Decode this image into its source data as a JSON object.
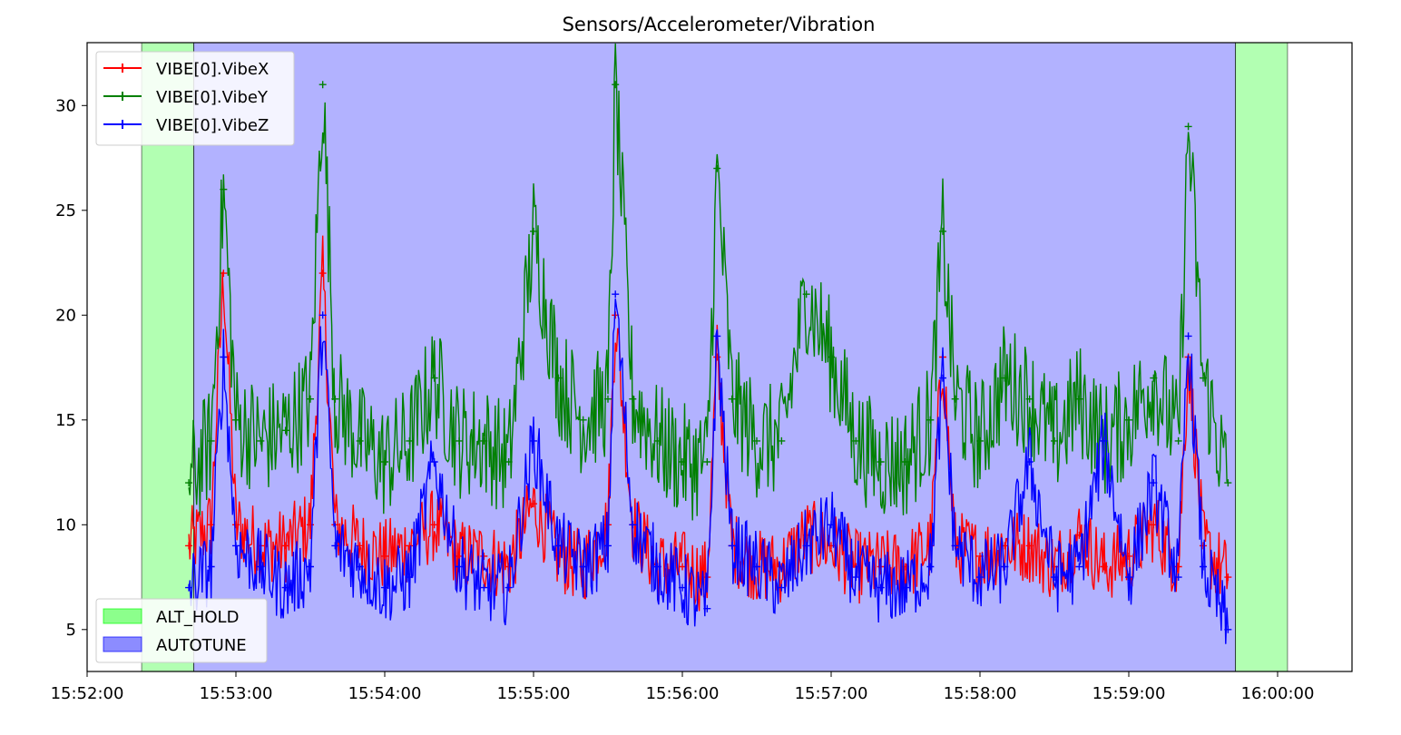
{
  "chart_data": {
    "type": "line",
    "title": "Sensors/Accelerometer/Vibration",
    "xlabel": "",
    "ylabel": "",
    "x_axis": {
      "range": [
        "15:52:00",
        "16:00:30"
      ],
      "ticks": [
        "15:52:00",
        "15:53:00",
        "15:54:00",
        "15:55:00",
        "15:56:00",
        "15:57:00",
        "15:58:00",
        "15:59:00",
        "16:00:00"
      ]
    },
    "y_axis": {
      "range": [
        3,
        33
      ],
      "ticks": [
        5,
        10,
        15,
        20,
        25,
        30
      ]
    },
    "grid": false,
    "marker": "+",
    "series": [
      {
        "name": "VIBE[0].VibeX",
        "color": "#ff0000",
        "x": [
          "15:52:41",
          "15:52:50",
          "15:52:55",
          "15:53:00",
          "15:53:10",
          "15:53:20",
          "15:53:30",
          "15:53:35",
          "15:53:40",
          "15:53:50",
          "15:54:00",
          "15:54:10",
          "15:54:20",
          "15:54:30",
          "15:54:40",
          "15:54:50",
          "15:55:00",
          "15:55:10",
          "15:55:20",
          "15:55:30",
          "15:55:33",
          "15:55:40",
          "15:55:50",
          "15:56:00",
          "15:56:10",
          "15:56:14",
          "15:56:20",
          "15:56:30",
          "15:56:40",
          "15:56:50",
          "15:57:00",
          "15:57:10",
          "15:57:20",
          "15:57:30",
          "15:57:40",
          "15:57:45",
          "15:57:50",
          "15:58:00",
          "15:58:10",
          "15:58:20",
          "15:58:30",
          "15:58:40",
          "15:58:50",
          "15:59:00",
          "15:59:10",
          "15:59:20",
          "15:59:24",
          "15:59:30",
          "15:59:40"
        ],
        "values": [
          9,
          10,
          22,
          10,
          9,
          9,
          10,
          22,
          10,
          9,
          8.5,
          9,
          10,
          8.5,
          8.5,
          8,
          11,
          8.5,
          8,
          10,
          20,
          10,
          8,
          8,
          7.5,
          18,
          9,
          8,
          8,
          9.5,
          9,
          8,
          8,
          8,
          9,
          18,
          9,
          8.5,
          9,
          9,
          8,
          9.5,
          8,
          8.5,
          10,
          8,
          18,
          9,
          7.5
        ]
      },
      {
        "name": "VIBE[0].VibeY",
        "color": "#008000",
        "x": [
          "15:52:41",
          "15:52:50",
          "15:52:55",
          "15:53:00",
          "15:53:10",
          "15:53:20",
          "15:53:30",
          "15:53:35",
          "15:53:40",
          "15:53:50",
          "15:54:00",
          "15:54:10",
          "15:54:20",
          "15:54:30",
          "15:54:40",
          "15:54:50",
          "15:55:00",
          "15:55:10",
          "15:55:20",
          "15:55:30",
          "15:55:33",
          "15:55:40",
          "15:55:50",
          "15:56:00",
          "15:56:10",
          "15:56:14",
          "15:56:20",
          "15:56:30",
          "15:56:40",
          "15:56:50",
          "15:57:00",
          "15:57:10",
          "15:57:20",
          "15:57:30",
          "15:57:40",
          "15:57:45",
          "15:57:50",
          "15:58:00",
          "15:58:10",
          "15:58:20",
          "15:58:30",
          "15:58:40",
          "15:58:50",
          "15:59:00",
          "15:59:10",
          "15:59:20",
          "15:59:24",
          "15:59:30",
          "15:59:40"
        ],
        "values": [
          12,
          14,
          26,
          15,
          14,
          14.5,
          16,
          31,
          16,
          14,
          13,
          14,
          17,
          14,
          14,
          13,
          24,
          17,
          15,
          16,
          31,
          16,
          14,
          13,
          13,
          27,
          16,
          14,
          14,
          21,
          18,
          14,
          13,
          13,
          15,
          24,
          16,
          14,
          17,
          16,
          14,
          16,
          14,
          15,
          17,
          14,
          29,
          17,
          12
        ]
      },
      {
        "name": "VIBE[0].VibeZ",
        "color": "#0000ff",
        "x": [
          "15:52:41",
          "15:52:50",
          "15:52:55",
          "15:53:00",
          "15:53:10",
          "15:53:20",
          "15:53:30",
          "15:53:35",
          "15:53:40",
          "15:53:50",
          "15:54:00",
          "15:54:10",
          "15:54:20",
          "15:54:30",
          "15:54:40",
          "15:54:50",
          "15:55:00",
          "15:55:10",
          "15:55:20",
          "15:55:30",
          "15:55:33",
          "15:55:40",
          "15:55:50",
          "15:56:00",
          "15:56:10",
          "15:56:14",
          "15:56:20",
          "15:56:30",
          "15:56:40",
          "15:56:50",
          "15:57:00",
          "15:57:10",
          "15:57:20",
          "15:57:30",
          "15:57:40",
          "15:57:45",
          "15:57:50",
          "15:58:00",
          "15:58:10",
          "15:58:20",
          "15:58:30",
          "15:58:40",
          "15:58:50",
          "15:59:00",
          "15:59:10",
          "15:59:20",
          "15:59:24",
          "15:59:30",
          "15:59:40"
        ],
        "values": [
          7,
          8,
          18,
          9,
          8,
          7,
          8,
          20,
          9,
          8,
          7,
          7.5,
          13,
          8,
          7,
          7,
          14,
          9,
          8,
          9,
          21,
          10,
          8,
          7,
          6,
          19,
          9,
          8,
          7,
          9,
          10,
          7.5,
          7,
          7,
          8,
          17,
          9,
          7.5,
          8,
          13,
          7.5,
          8,
          14,
          7.5,
          12,
          7.5,
          19,
          8,
          5
        ]
      }
    ],
    "regions": [
      {
        "name": "ALT_HOLD",
        "color": "#00ff00",
        "alpha": 0.3,
        "x_start": "15:52:22",
        "x_end": "15:52:43"
      },
      {
        "name": "AUTOTUNE",
        "color": "#0000ff",
        "alpha": 0.3,
        "x_start": "15:52:43",
        "x_end": "15:59:43"
      },
      {
        "name": "ALT_HOLD",
        "color": "#00ff00",
        "alpha": 0.3,
        "x_start": "15:59:43",
        "x_end": "16:00:04"
      }
    ],
    "legend_series_placement": "top-left",
    "legend_regions_placement": "bottom-left",
    "legend_regions": [
      {
        "label": "ALT_HOLD",
        "color": "#00ff00"
      },
      {
        "label": "AUTOTUNE",
        "color": "#0000ff"
      }
    ]
  }
}
